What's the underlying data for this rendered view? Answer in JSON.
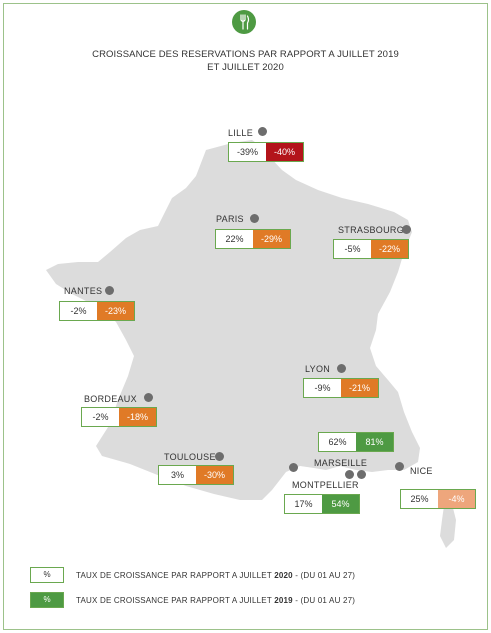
{
  "title": {
    "line1": "CROISSANCE DES RESERVATIONS PAR RAPPORT A JUILLET 2019",
    "line2": "ET JUILLET 2020"
  },
  "logo_icon": "fork-leaf-icon",
  "colors": {
    "map_fill": "#dcdcdc",
    "border_green": "#6aa84f",
    "orange": "#e07a26",
    "red": "#b3141a",
    "green": "#4e9a43",
    "salmon": "#eea67c"
  },
  "cities": [
    {
      "key": "lille",
      "name": "LILLE",
      "vs2020": "-39%",
      "vs2019": "-40%"
    },
    {
      "key": "paris",
      "name": "PARIS",
      "vs2020": "22%",
      "vs2019": "-29%"
    },
    {
      "key": "strasbourg",
      "name": "STRASBOURG",
      "vs2020": "-5%",
      "vs2019": "-22%"
    },
    {
      "key": "nantes",
      "name": "NANTES",
      "vs2020": "-2%",
      "vs2019": "-23%"
    },
    {
      "key": "lyon",
      "name": "LYON",
      "vs2020": "-9%",
      "vs2019": "-21%"
    },
    {
      "key": "bordeaux",
      "name": "BORDEAUX",
      "vs2020": "-2%",
      "vs2019": "-18%"
    },
    {
      "key": "marseille",
      "name": "MARSEILLE",
      "vs2020": "62%",
      "vs2019": "81%"
    },
    {
      "key": "toulouse",
      "name": "TOULOUSE",
      "vs2020": "3%",
      "vs2019": "-30%"
    },
    {
      "key": "nice",
      "name": "NICE",
      "vs2020": "25%",
      "vs2019": "-4%"
    },
    {
      "key": "montpellier",
      "name": "MONTPELLIER",
      "vs2020": "17%",
      "vs2019": "54%"
    }
  ],
  "legend": [
    {
      "box": "%",
      "text_before": "TAUX DE CROISSANCE PAR RAPPORT A JUILLET ",
      "year": "2020",
      "text_after": " - (DU 01 AU 27)"
    },
    {
      "box": "%",
      "text_before": "TAUX DE CROISSANCE PAR RAPPORT A JUILLET ",
      "year": "2019",
      "text_after": " - (DU 01 AU 27)"
    }
  ]
}
